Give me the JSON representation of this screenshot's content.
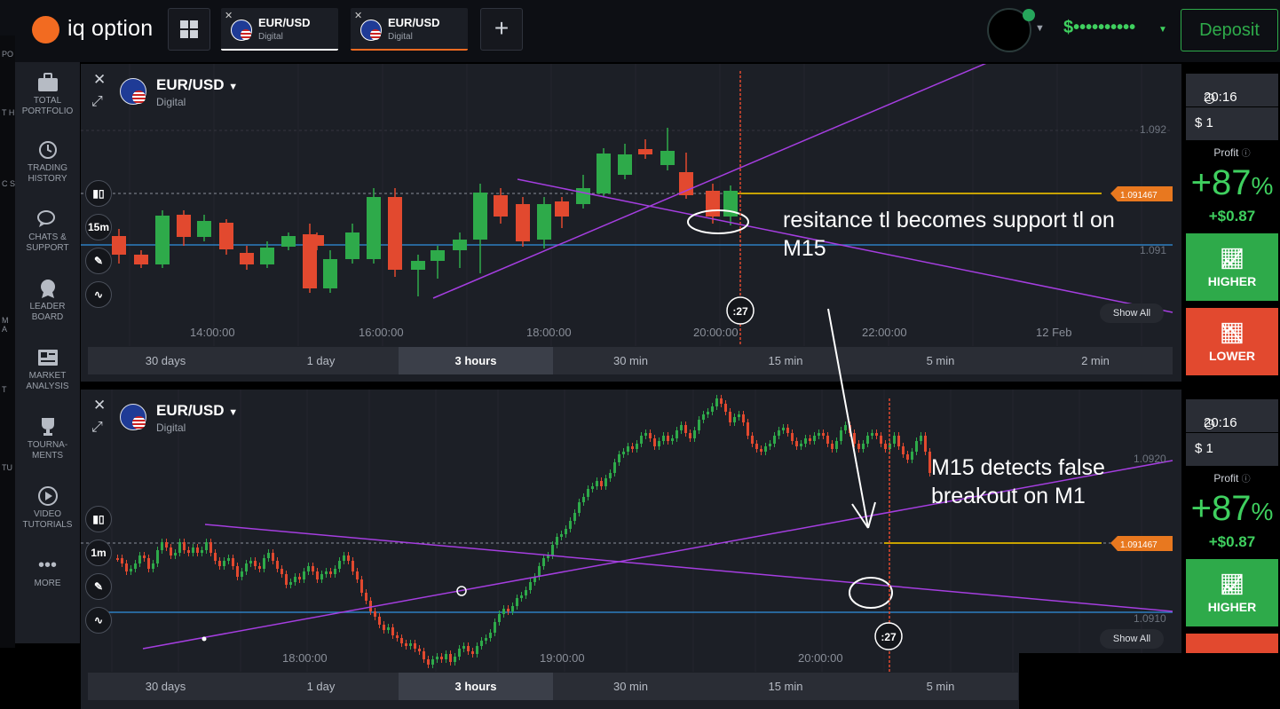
{
  "app": {
    "brand": "iq option"
  },
  "tabs": [
    {
      "symbol": "EUR/USD",
      "type": "Digital"
    },
    {
      "symbol": "EUR/USD",
      "type": "Digital"
    }
  ],
  "header": {
    "balance": "$••••••••••",
    "deposit_label": "Deposit",
    "add_tab": "+"
  },
  "sidebar": {
    "items": [
      {
        "label": "TOTAL PORTFOLIO",
        "icon": "briefcase-icon"
      },
      {
        "label": "TRADING HISTORY",
        "icon": "history-icon"
      },
      {
        "label": "CHATS & SUPPORT",
        "icon": "chat-icon"
      },
      {
        "label": "LEADER BOARD",
        "icon": "medal-icon"
      },
      {
        "label": "MARKET ANALYSIS",
        "icon": "newspaper-icon"
      },
      {
        "label": "TOURNA-MENTS",
        "icon": "trophy-icon"
      },
      {
        "label": "VIDEO TUTORIALS",
        "icon": "play-icon"
      },
      {
        "label": "MORE",
        "icon": "dots-icon"
      }
    ],
    "clipped_letters": [
      "PO",
      "T H",
      "C S",
      "M A",
      "T",
      "TU"
    ]
  },
  "charts": [
    {
      "asset": "EUR/USD",
      "asset_type": "Digital",
      "interval": "15m",
      "expiry": ":27",
      "current_price": "1.091467",
      "price_labels": [
        "1.092",
        "1.091"
      ],
      "time_labels": [
        "14:00:00",
        "16:00:00",
        "18:00:00",
        "20:00:00",
        "22:00:00",
        "12 Feb"
      ],
      "show_all": "Show All",
      "timeframes": [
        "30 days",
        "1 day",
        "3 hours",
        "30 min",
        "15 min",
        "5 min",
        "2 min"
      ],
      "active_timeframe": "3 hours",
      "annotation": "resitance tl becomes support tl on M15"
    },
    {
      "asset": "EUR/USD",
      "asset_type": "Digital",
      "interval": "1m",
      "expiry": ":27",
      "current_price": "1.091467",
      "price_labels": [
        "1.0920",
        "1.0910"
      ],
      "time_labels": [
        "18:00:00",
        "19:00:00",
        "20:00:00"
      ],
      "show_all": "Show All",
      "timeframes": [
        "30 days",
        "1 day",
        "3 hours",
        "30 min",
        "15 min",
        "5 min"
      ],
      "active_timeframe": "3 hours",
      "annotation": "M15 detects false breakout on M1"
    }
  ],
  "trade": {
    "time": "20:16",
    "amount": "$ 1",
    "profit_label": "Profit",
    "profit_percent": "+87",
    "percent_sign": "%",
    "profit_amount": "+$0.87",
    "higher_label": "HIGHER",
    "lower_label": "LOWER"
  },
  "colors": {
    "up": "#2eaa4a",
    "down": "#e2492f",
    "trendline": "#a53ee0",
    "accent": "#f26b21"
  }
}
